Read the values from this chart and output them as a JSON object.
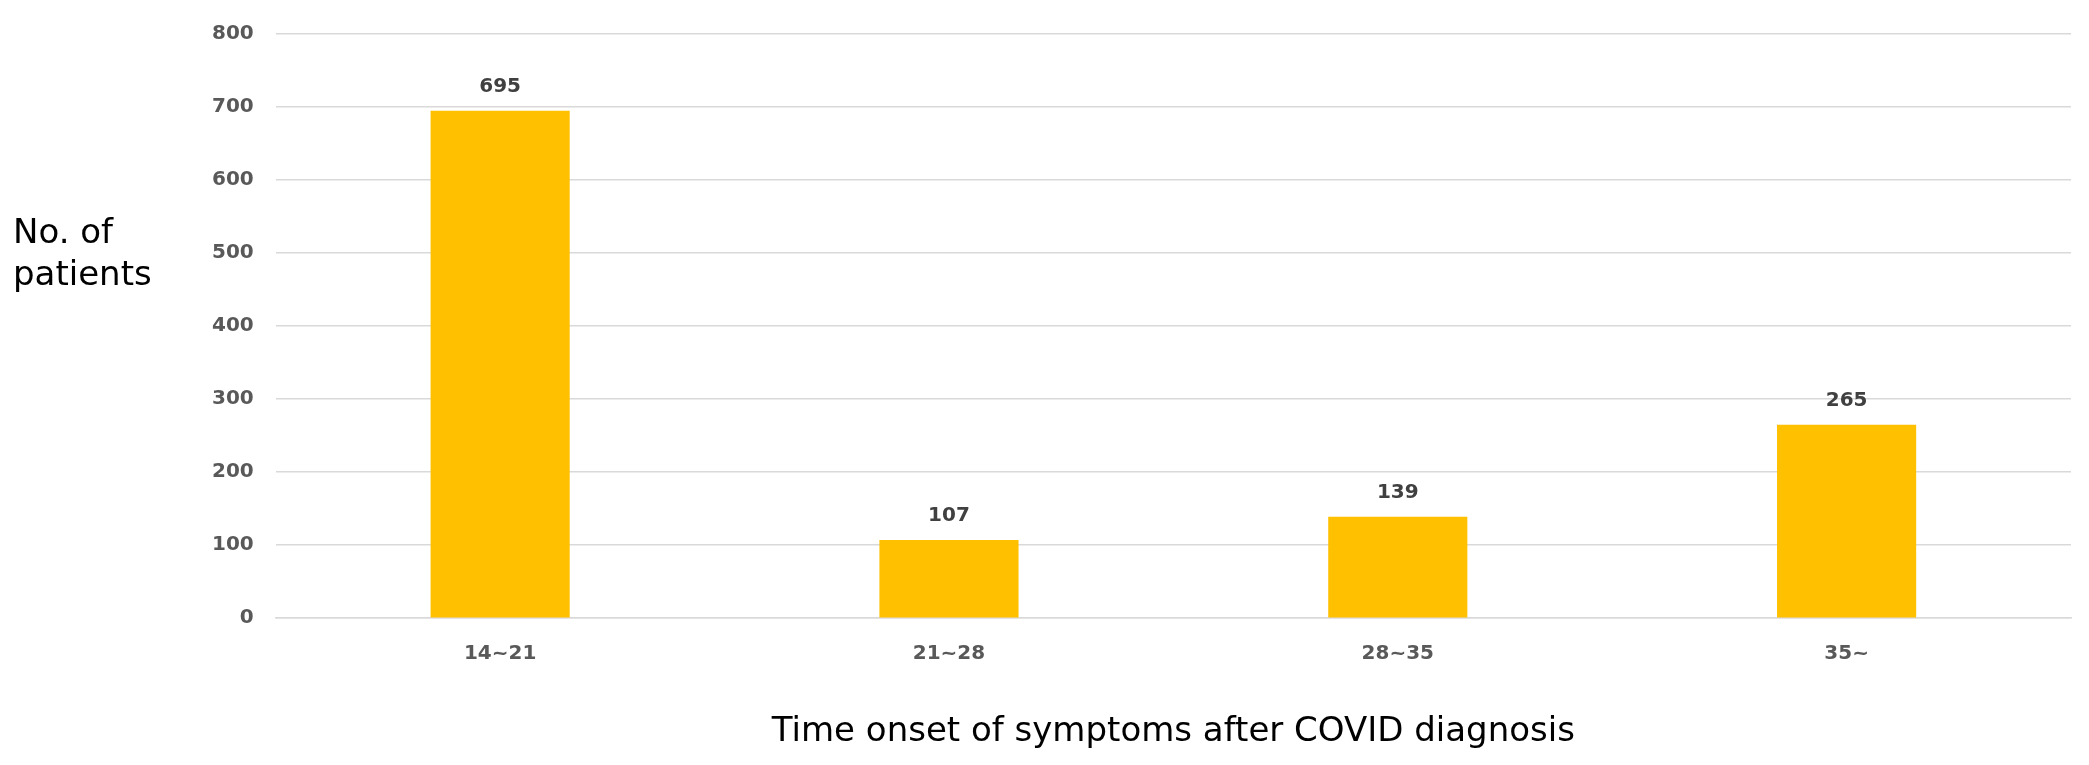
{
  "chart_data": {
    "type": "bar",
    "xlabel": "Time onset of symptoms after COVID diagnosis",
    "ylabel": "No. of patients",
    "categories": [
      "14~21",
      "21~28",
      "28~35",
      "35~"
    ],
    "values": [
      695,
      107,
      139,
      265
    ],
    "color": "#ffc000",
    "ylim": [
      0,
      800
    ],
    "yticks": [
      0,
      100,
      200,
      300,
      400,
      500,
      600,
      700,
      800
    ],
    "grid": "y",
    "legend": false,
    "data_labels": true
  }
}
